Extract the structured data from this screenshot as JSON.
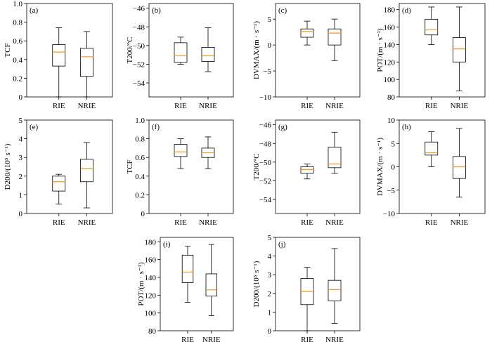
{
  "chart_data": [
    {
      "panel": "(a)",
      "type": "box",
      "categories": [
        "RIE",
        "NRIE"
      ],
      "ylabel": "TCF",
      "ylim": [
        0,
        1.0
      ],
      "yticks": [
        "0",
        "0.2",
        "0.4",
        "0.6",
        "0.8",
        "1.0"
      ],
      "series": [
        {
          "min": 0.0,
          "q1": 0.33,
          "median": 0.48,
          "q3": 0.56,
          "max": 0.74
        },
        {
          "min": 0.0,
          "q1": 0.22,
          "median": 0.43,
          "q3": 0.52,
          "max": 0.7
        }
      ]
    },
    {
      "panel": "(b)",
      "type": "box",
      "categories": [
        "RIE",
        "NRIE"
      ],
      "ylabel": "T200/°C",
      "ylim": [
        -55.5,
        -45.5
      ],
      "yticks": [
        "−54",
        "−52",
        "−50",
        "−48",
        "−46"
      ],
      "series": [
        {
          "min": -52.0,
          "q1": -51.8,
          "median": -51.1,
          "q3": -49.7,
          "max": -49.1
        },
        {
          "min": -52.8,
          "q1": -51.7,
          "median": -51.1,
          "q3": -50.2,
          "max": -48.1
        }
      ]
    },
    {
      "panel": "(c)",
      "type": "box",
      "categories": [
        "RIE",
        "NRIE"
      ],
      "ylabel": "DVMAX/(m · s⁻¹)",
      "ylim": [
        -10,
        8
      ],
      "yticks": [
        "−10",
        "−5",
        "0",
        "5"
      ],
      "series": [
        {
          "min": 0.0,
          "q1": 1.5,
          "median": 2.6,
          "q3": 3.1,
          "max": 4.6
        },
        {
          "min": -3.0,
          "q1": 0.0,
          "median": 2.3,
          "q3": 3.1,
          "max": 5.0
        }
      ]
    },
    {
      "panel": "(d)",
      "type": "box",
      "categories": [
        "RIE",
        "NRIE"
      ],
      "ylabel": "POT/(m · s⁻¹)",
      "ylim": [
        80,
        187
      ],
      "yticks": [
        "80",
        "100",
        "120",
        "140",
        "160",
        "180"
      ],
      "series": [
        {
          "min": 140,
          "q1": 151,
          "median": 157,
          "q3": 169,
          "max": 183
        },
        {
          "min": 87,
          "q1": 120,
          "median": 135,
          "q3": 148,
          "max": 183
        }
      ]
    },
    {
      "panel": "(e)",
      "type": "box",
      "categories": [
        "RIE",
        "NRIE"
      ],
      "ylabel": "D200/(10⁵ s⁻¹)",
      "ylim": [
        0,
        5
      ],
      "yticks": [
        "0",
        "1",
        "2",
        "3",
        "4",
        "5"
      ],
      "series": [
        {
          "min": 0.5,
          "q1": 1.2,
          "median": 1.7,
          "q3": 2.0,
          "max": 2.1
        },
        {
          "min": 0.3,
          "q1": 1.7,
          "median": 2.4,
          "q3": 2.9,
          "max": 3.8
        }
      ]
    },
    {
      "panel": "(f)",
      "type": "box",
      "categories": [
        "RIE",
        "NRIE"
      ],
      "ylabel": "TCF",
      "ylim": [
        0,
        1.0
      ],
      "yticks": [
        "0",
        "0.2",
        "0.4",
        "0.6",
        "0.8",
        "1.0"
      ],
      "series": [
        {
          "min": 0.48,
          "q1": 0.61,
          "median": 0.66,
          "q3": 0.74,
          "max": 0.8
        },
        {
          "min": 0.48,
          "q1": 0.6,
          "median": 0.65,
          "q3": 0.7,
          "max": 0.82
        }
      ]
    },
    {
      "panel": "(g)",
      "type": "box",
      "categories": [
        "RIE",
        "NRIE"
      ],
      "ylabel": "T200/°C",
      "ylim": [
        -55.5,
        -45.5
      ],
      "yticks": [
        "−54",
        "−52",
        "−50",
        "−48",
        "−46"
      ],
      "series": [
        {
          "min": -51.8,
          "q1": -51.2,
          "median": -50.8,
          "q3": -50.5,
          "max": -50.2
        },
        {
          "min": -51.2,
          "q1": -50.6,
          "median": -50.2,
          "q3": -48.4,
          "max": -46.8
        }
      ]
    },
    {
      "panel": "(h)",
      "type": "box",
      "categories": [
        "RIE",
        "NRIE"
      ],
      "ylabel": "DVMAX/(m · s⁻¹)",
      "ylim": [
        -10,
        10
      ],
      "yticks": [
        "−10",
        "−5",
        "0",
        "5",
        "10"
      ],
      "series": [
        {
          "min": 0.0,
          "q1": 2.5,
          "median": 3.0,
          "q3": 5.3,
          "max": 7.5
        },
        {
          "min": -6.5,
          "q1": -2.5,
          "median": 0.0,
          "q3": 2.2,
          "max": 8.2
        }
      ]
    },
    {
      "panel": "(i)",
      "type": "box",
      "categories": [
        "RIE",
        "NRIE"
      ],
      "ylabel": "POT/(m · s⁻¹)",
      "ylim": [
        80,
        185
      ],
      "yticks": [
        "80",
        "100",
        "120",
        "140",
        "160",
        "180"
      ],
      "series": [
        {
          "min": 112,
          "q1": 134,
          "median": 146,
          "q3": 165,
          "max": 175
        },
        {
          "min": 97,
          "q1": 119,
          "median": 126,
          "q3": 144,
          "max": 177
        }
      ]
    },
    {
      "panel": "(j)",
      "type": "box",
      "categories": [
        "RIE",
        "NRIE"
      ],
      "ylabel": "D200/(10⁵ s⁻¹)",
      "ylim": [
        0,
        5
      ],
      "yticks": [
        "0",
        "1",
        "2",
        "3",
        "4",
        "5"
      ],
      "series": [
        {
          "min": 0.0,
          "q1": 1.4,
          "median": 2.1,
          "q3": 2.8,
          "max": 3.4
        },
        {
          "min": 0.4,
          "q1": 1.6,
          "median": 2.2,
          "q3": 2.7,
          "max": 4.4
        }
      ]
    }
  ]
}
